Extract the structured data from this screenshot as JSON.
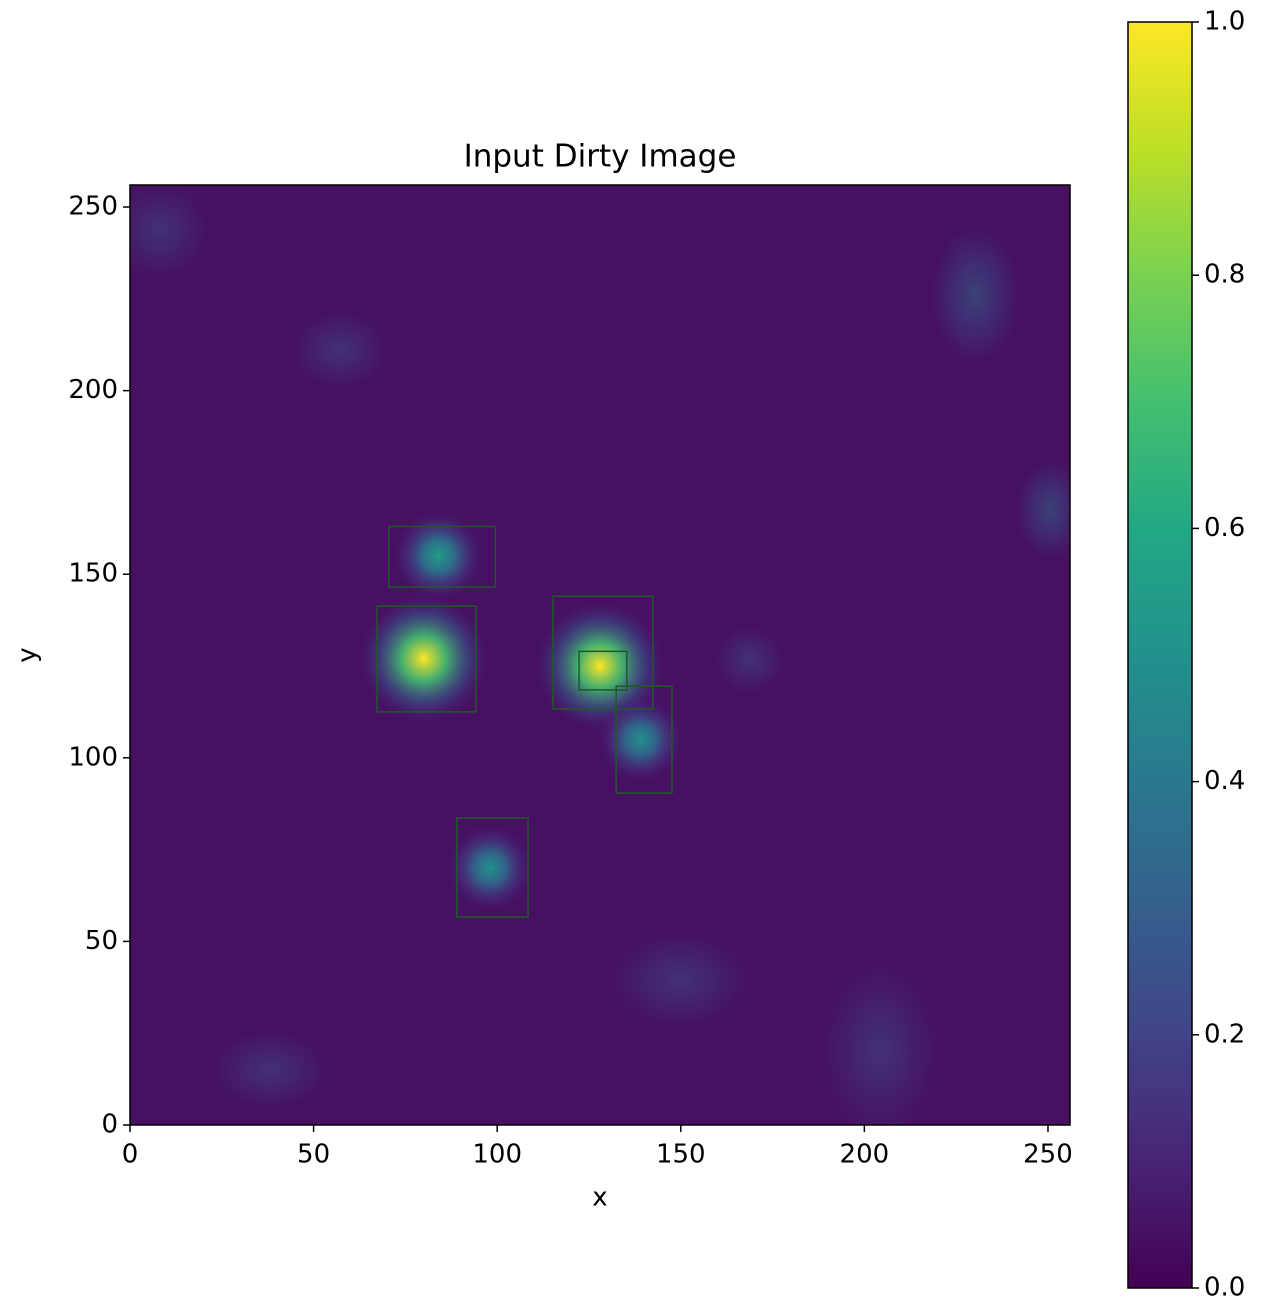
{
  "chart_data": {
    "type": "image",
    "title": "Input Dirty Image",
    "xlabel": "x",
    "ylabel": "y",
    "xlim": [
      0,
      256
    ],
    "ylim": [
      0,
      256
    ],
    "xticks": [
      0,
      50,
      100,
      150,
      200,
      250
    ],
    "yticks": [
      0,
      50,
      100,
      150,
      200,
      250
    ],
    "colormap": "viridis",
    "clim": [
      0,
      1
    ],
    "cticks": [
      {
        "value": 0,
        "label": "0.0"
      },
      {
        "value": 0.2,
        "label": "0.2"
      },
      {
        "value": 0.4,
        "label": "0.4"
      },
      {
        "value": 0.6,
        "label": "0.6"
      },
      {
        "value": 0.8,
        "label": "0.8"
      },
      {
        "value": 1,
        "label": "1.0"
      }
    ],
    "sources": [
      {
        "x": 80,
        "y": 127,
        "peak": 1.0
      },
      {
        "x": 128,
        "y": 125,
        "peak": 1.0
      },
      {
        "x": 84,
        "y": 155,
        "peak": 0.55
      },
      {
        "x": 139,
        "y": 105,
        "peak": 0.5
      },
      {
        "x": 98,
        "y": 70,
        "peak": 0.5
      }
    ],
    "box_color": "#1e5a28",
    "boxes": [
      {
        "x0": 70.5,
        "x1": 99.5,
        "y0": 146.5,
        "y1": 163
      },
      {
        "x0": 67.3,
        "x1": 94.2,
        "y0": 112.5,
        "y1": 141.3
      },
      {
        "x0": 115.2,
        "x1": 142.4,
        "y0": 113.3,
        "y1": 144
      },
      {
        "x0": 122.3,
        "x1": 135.3,
        "y0": 118.5,
        "y1": 129
      },
      {
        "x0": 132.4,
        "x1": 147.6,
        "y0": 90.4,
        "y1": 119.5
      },
      {
        "x0": 89,
        "x1": 108.4,
        "y0": 56.6,
        "y1": 83.6
      }
    ]
  }
}
